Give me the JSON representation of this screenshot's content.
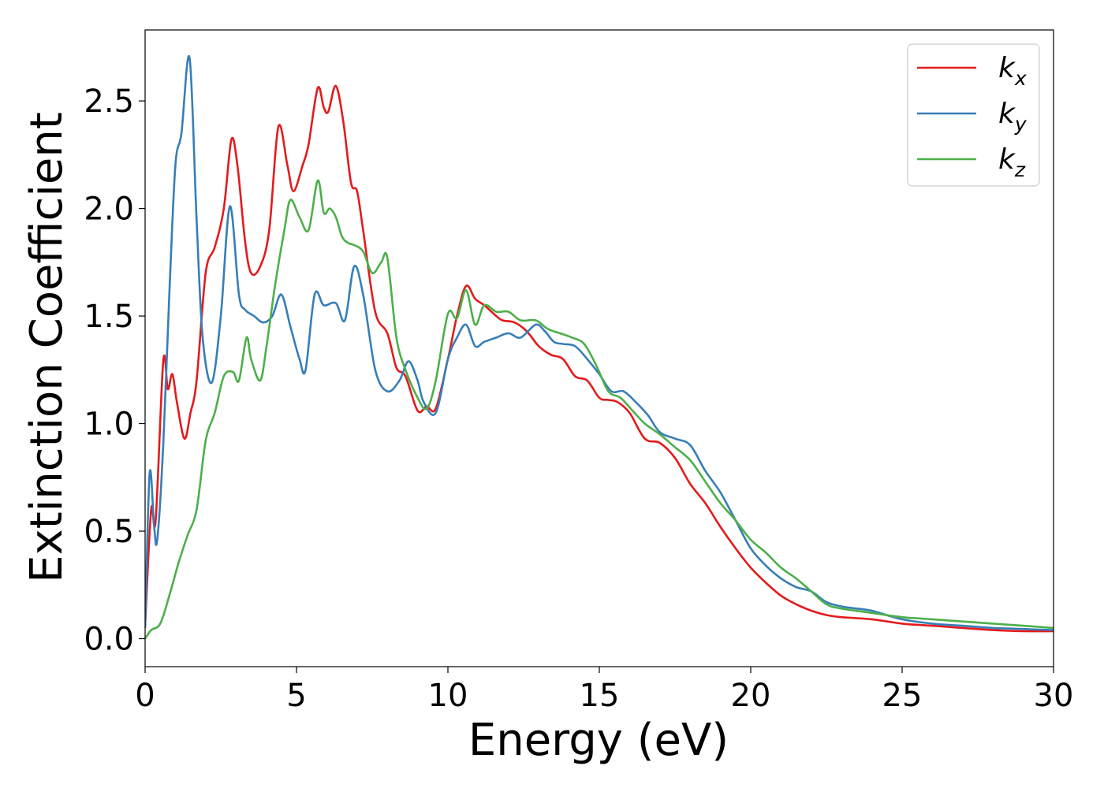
{
  "chart_data": {
    "type": "line",
    "title": "",
    "xlabel": "Energy (eV)",
    "ylabel": "Extinction Coefficient",
    "xlim": [
      0,
      30
    ],
    "ylim": [
      -0.13,
      2.83
    ],
    "xticks": [
      "0",
      "5",
      "10",
      "15",
      "20",
      "25",
      "30"
    ],
    "yticks": [
      "0.0",
      "0.5",
      "1.0",
      "1.5",
      "2.0",
      "2.5"
    ],
    "grid": false,
    "legend_position": "top-right",
    "series": [
      {
        "name": "k",
        "subscript": "x",
        "color": "#e41a1c",
        "x": [
          0,
          0.2,
          0.35,
          0.6,
          0.75,
          0.9,
          1.05,
          1.3,
          1.5,
          1.7,
          2.0,
          2.3,
          2.6,
          2.85,
          3.05,
          3.3,
          3.5,
          3.8,
          4.1,
          4.4,
          4.7,
          4.9,
          5.2,
          5.4,
          5.7,
          5.9,
          6.05,
          6.3,
          6.55,
          6.8,
          7.0,
          7.2,
          7.6,
          8.0,
          8.3,
          8.6,
          9.0,
          9.3,
          9.6,
          10.0,
          10.3,
          10.6,
          10.9,
          11.2,
          11.6,
          11.8,
          12.2,
          12.6,
          13.0,
          13.4,
          13.8,
          14.2,
          14.6,
          15.0,
          15.3,
          15.6,
          16.0,
          16.5,
          17.0,
          17.5,
          18.0,
          18.5,
          19.0,
          19.5,
          20.0,
          20.5,
          21.0,
          21.5,
          22.0,
          22.5,
          23.0,
          24.0,
          25.0,
          26.0,
          27.0,
          28.0,
          29.0,
          30.0
        ],
        "y": [
          0.06,
          0.6,
          0.55,
          1.29,
          1.16,
          1.23,
          1.1,
          0.93,
          1.05,
          1.2,
          1.7,
          1.82,
          2.0,
          2.32,
          2.2,
          1.85,
          1.7,
          1.73,
          1.9,
          2.38,
          2.2,
          2.08,
          2.2,
          2.3,
          2.56,
          2.47,
          2.45,
          2.57,
          2.4,
          2.12,
          2.08,
          1.9,
          1.52,
          1.42,
          1.26,
          1.22,
          1.06,
          1.08,
          1.07,
          1.3,
          1.5,
          1.64,
          1.58,
          1.55,
          1.5,
          1.48,
          1.47,
          1.43,
          1.36,
          1.32,
          1.3,
          1.22,
          1.2,
          1.12,
          1.11,
          1.1,
          1.05,
          0.93,
          0.91,
          0.84,
          0.72,
          0.63,
          0.52,
          0.42,
          0.33,
          0.26,
          0.2,
          0.16,
          0.13,
          0.11,
          0.1,
          0.09,
          0.07,
          0.06,
          0.05,
          0.04,
          0.035,
          0.035
        ]
      },
      {
        "name": "k",
        "subscript": "y",
        "color": "#377eb8",
        "x": [
          0,
          0.15,
          0.3,
          0.4,
          0.6,
          0.8,
          1.0,
          1.2,
          1.47,
          1.7,
          1.9,
          2.2,
          2.5,
          2.8,
          3.1,
          3.3,
          3.6,
          3.9,
          4.2,
          4.5,
          4.8,
          5.1,
          5.3,
          5.6,
          5.9,
          6.3,
          6.6,
          6.9,
          7.2,
          7.6,
          8.0,
          8.4,
          8.7,
          9.0,
          9.2,
          9.6,
          10.0,
          10.3,
          10.6,
          10.9,
          11.2,
          11.6,
          12.0,
          12.4,
          12.9,
          13.2,
          13.5,
          13.8,
          14.2,
          14.6,
          15.0,
          15.4,
          15.8,
          16.2,
          16.6,
          17.0,
          17.5,
          18.0,
          18.5,
          19.0,
          19.5,
          20.0,
          20.5,
          21.0,
          21.5,
          22.0,
          22.5,
          23.0,
          23.5,
          24.0,
          25.0,
          26.0,
          27.0,
          28.0,
          29.0,
          30.0
        ],
        "y": [
          0.05,
          0.77,
          0.52,
          0.46,
          0.9,
          1.6,
          2.2,
          2.35,
          2.7,
          1.95,
          1.4,
          1.19,
          1.5,
          2.01,
          1.6,
          1.53,
          1.5,
          1.47,
          1.5,
          1.6,
          1.45,
          1.3,
          1.25,
          1.6,
          1.55,
          1.56,
          1.48,
          1.73,
          1.6,
          1.25,
          1.15,
          1.2,
          1.29,
          1.2,
          1.1,
          1.05,
          1.3,
          1.4,
          1.46,
          1.36,
          1.38,
          1.4,
          1.42,
          1.4,
          1.46,
          1.43,
          1.38,
          1.37,
          1.36,
          1.3,
          1.23,
          1.15,
          1.15,
          1.1,
          1.04,
          0.96,
          0.93,
          0.9,
          0.78,
          0.68,
          0.55,
          0.42,
          0.34,
          0.28,
          0.24,
          0.22,
          0.17,
          0.15,
          0.14,
          0.13,
          0.09,
          0.07,
          0.06,
          0.05,
          0.045,
          0.04
        ]
      },
      {
        "name": "k",
        "subscript": "z",
        "color": "#4daf4a",
        "x": [
          0,
          0.2,
          0.5,
          0.8,
          1.1,
          1.4,
          1.7,
          2.0,
          2.3,
          2.6,
          2.9,
          3.1,
          3.35,
          3.5,
          3.8,
          4.0,
          4.3,
          4.6,
          4.8,
          5.1,
          5.4,
          5.7,
          5.9,
          6.1,
          6.3,
          6.5,
          6.7,
          6.9,
          7.2,
          7.5,
          7.8,
          8.0,
          8.3,
          8.6,
          9.0,
          9.3,
          9.6,
          10.0,
          10.3,
          10.6,
          10.9,
          11.2,
          11.6,
          12.0,
          12.4,
          12.9,
          13.3,
          13.7,
          14.1,
          14.5,
          14.9,
          15.3,
          15.7,
          16.1,
          16.5,
          17.0,
          17.5,
          18.0,
          18.5,
          19.0,
          19.5,
          20.0,
          20.5,
          21.0,
          21.5,
          22.0,
          22.5,
          23.0,
          24.0,
          25.0,
          26.0,
          27.0,
          28.0,
          29.0,
          30.0
        ],
        "y": [
          0.0,
          0.04,
          0.07,
          0.2,
          0.35,
          0.48,
          0.6,
          0.92,
          1.05,
          1.22,
          1.24,
          1.2,
          1.4,
          1.3,
          1.2,
          1.35,
          1.65,
          1.9,
          2.04,
          1.96,
          1.9,
          2.13,
          1.98,
          2.0,
          1.96,
          1.87,
          1.84,
          1.83,
          1.8,
          1.7,
          1.75,
          1.77,
          1.4,
          1.25,
          1.12,
          1.07,
          1.2,
          1.51,
          1.49,
          1.62,
          1.46,
          1.55,
          1.52,
          1.52,
          1.48,
          1.48,
          1.44,
          1.42,
          1.4,
          1.37,
          1.27,
          1.15,
          1.12,
          1.06,
          1.0,
          0.95,
          0.89,
          0.83,
          0.73,
          0.63,
          0.55,
          0.46,
          0.4,
          0.33,
          0.28,
          0.22,
          0.16,
          0.14,
          0.12,
          0.1,
          0.09,
          0.08,
          0.07,
          0.06,
          0.05
        ]
      }
    ]
  }
}
